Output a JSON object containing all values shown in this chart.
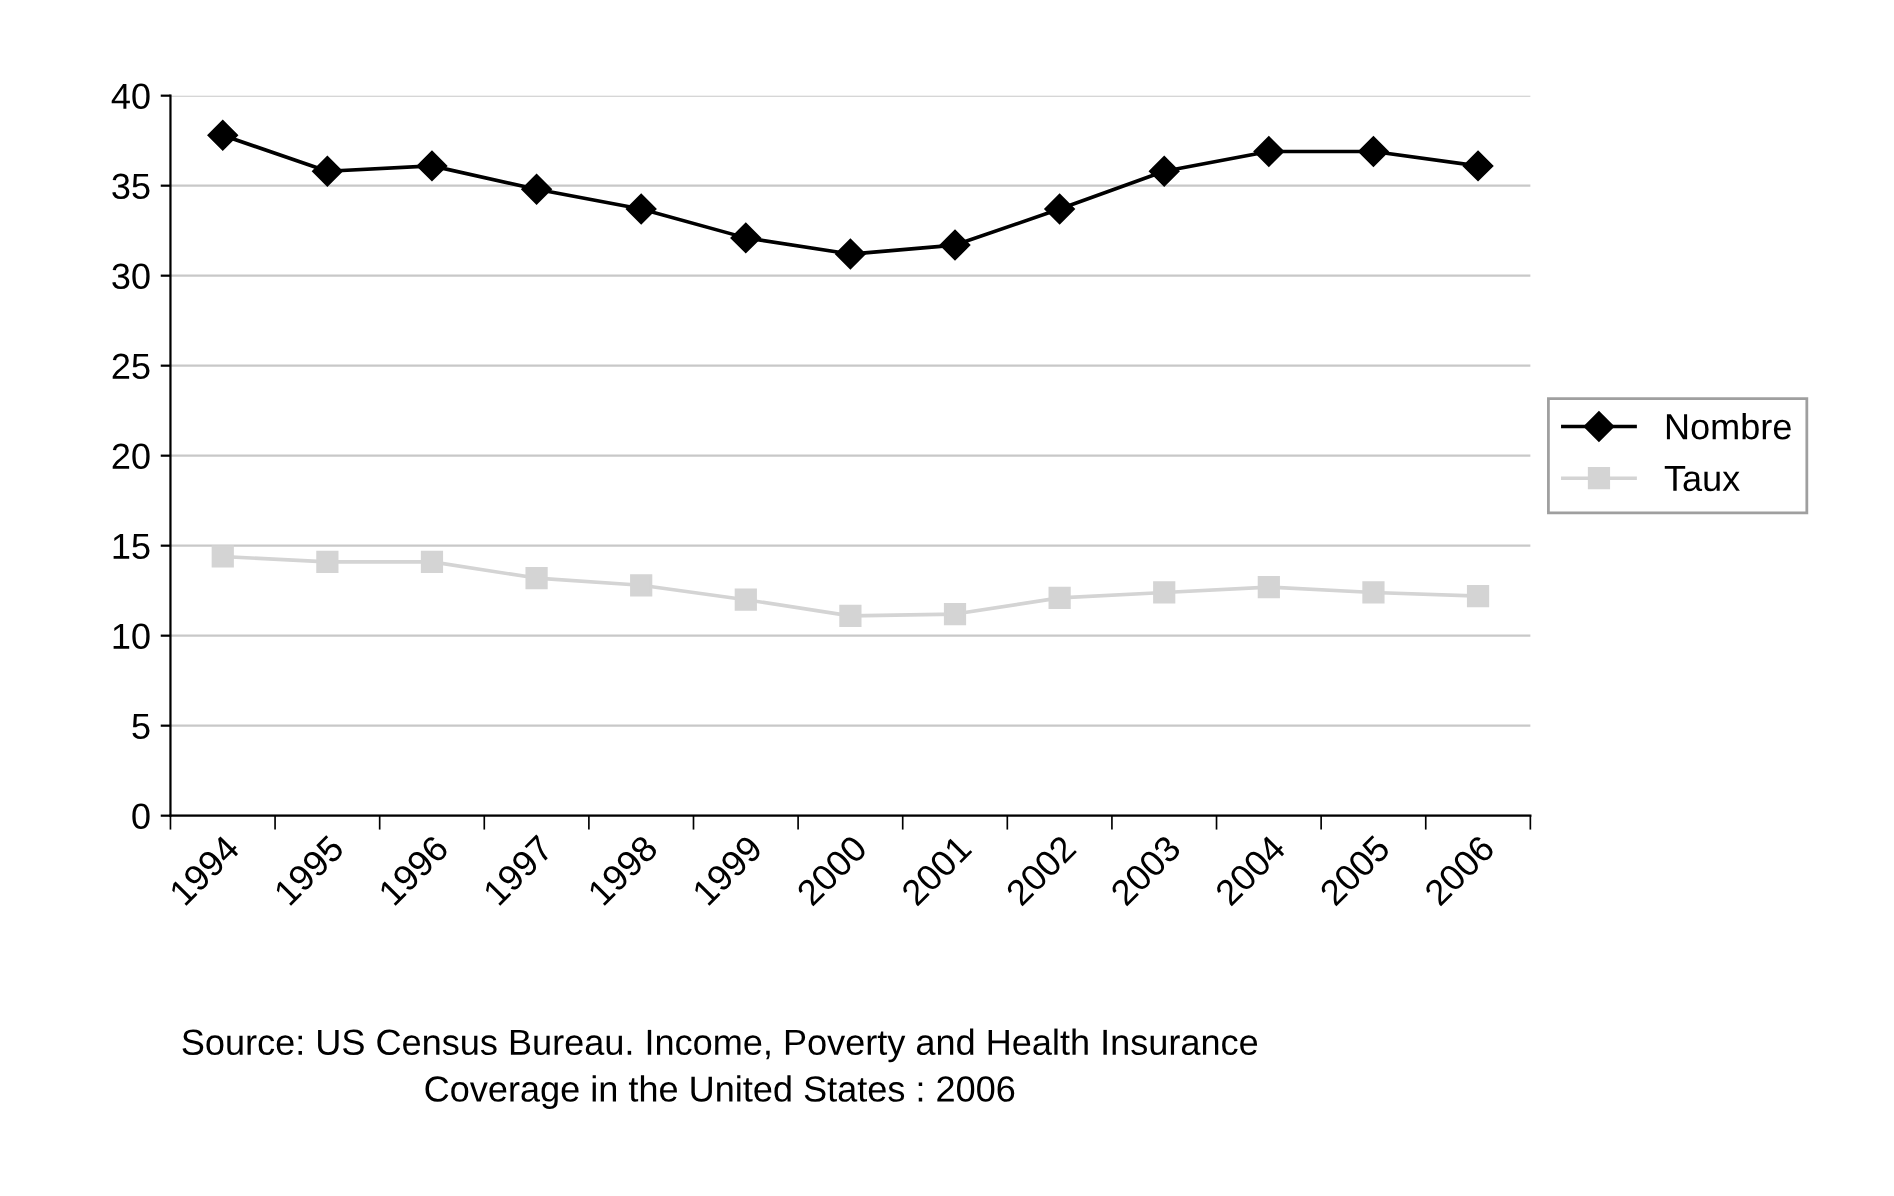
{
  "chart_data": {
    "type": "line",
    "categories": [
      "1994",
      "1995",
      "1996",
      "1997",
      "1998",
      "1999",
      "2000",
      "2001",
      "2002",
      "2003",
      "2004",
      "2005",
      "2006"
    ],
    "series": [
      {
        "name": "Nombre",
        "color": "#000000",
        "marker": "diamond",
        "values": [
          37.8,
          35.8,
          36.1,
          34.8,
          33.7,
          32.1,
          31.2,
          31.7,
          33.7,
          35.8,
          36.9,
          36.9,
          36.1
        ]
      },
      {
        "name": "Taux",
        "color": "#d4d4d4",
        "marker": "square",
        "values": [
          14.4,
          14.1,
          14.1,
          13.2,
          12.8,
          12.0,
          11.1,
          11.2,
          12.1,
          12.4,
          12.7,
          12.4,
          12.2
        ]
      }
    ],
    "ylim": [
      0,
      40
    ],
    "yticks": [
      0,
      5,
      10,
      15,
      20,
      25,
      30,
      35,
      40
    ],
    "grid": "y",
    "legend": "right",
    "annotations": [
      "Source: US Census Bureau. Income, Poverty and Health Insurance\nCoverage in the United States : 2006"
    ]
  }
}
